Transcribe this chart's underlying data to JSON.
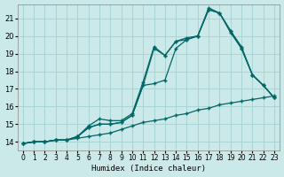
{
  "xlabel": "Humidex (Indice chaleur)",
  "bg_color": "#cce9e9",
  "grid_color": "#aad4d4",
  "line_color": "#006666",
  "xlim": [
    -0.5,
    23.5
  ],
  "ylim": [
    13.5,
    21.8
  ],
  "yticks": [
    14,
    15,
    16,
    17,
    18,
    19,
    20,
    21
  ],
  "xticks": [
    0,
    1,
    2,
    3,
    4,
    5,
    6,
    7,
    8,
    9,
    10,
    11,
    12,
    13,
    14,
    15,
    16,
    17,
    18,
    19,
    20,
    21,
    22,
    23
  ],
  "line1_x": [
    0,
    1,
    2,
    3,
    4,
    5,
    6,
    7,
    8,
    9,
    10,
    11,
    12,
    13,
    14,
    15,
    16,
    17,
    18,
    19,
    20,
    21,
    22,
    23
  ],
  "line1_y": [
    13.9,
    14.0,
    14.0,
    14.1,
    14.1,
    14.2,
    14.3,
    14.4,
    14.5,
    14.7,
    14.9,
    15.1,
    15.2,
    15.3,
    15.5,
    15.6,
    15.8,
    15.9,
    16.1,
    16.2,
    16.3,
    16.4,
    16.5,
    16.6
  ],
  "line2_x": [
    0,
    1,
    2,
    3,
    4,
    5,
    6,
    7,
    8,
    9,
    10,
    11,
    12,
    13,
    14,
    15,
    16,
    17,
    18,
    19,
    20,
    21,
    22,
    23
  ],
  "line2_y": [
    13.9,
    14.0,
    14.0,
    14.1,
    14.1,
    14.3,
    14.8,
    15.0,
    15.0,
    15.1,
    15.5,
    17.2,
    17.3,
    17.5,
    19.3,
    19.8,
    20.0,
    21.5,
    21.3,
    20.3,
    19.3,
    17.8,
    17.2,
    16.5
  ],
  "line3_x": [
    0,
    1,
    2,
    3,
    4,
    5,
    6,
    7,
    8,
    9,
    10,
    11,
    12,
    13,
    14,
    15,
    16,
    17,
    18,
    19,
    20,
    21,
    22,
    23
  ],
  "line3_y": [
    13.9,
    14.0,
    14.0,
    14.1,
    14.1,
    14.3,
    14.8,
    15.0,
    15.0,
    15.1,
    15.5,
    17.2,
    19.3,
    18.9,
    19.7,
    19.8,
    20.0,
    21.5,
    21.3,
    20.2,
    19.3,
    17.8,
    17.2,
    16.5
  ],
  "line4_x": [
    0,
    1,
    2,
    3,
    4,
    5,
    6,
    7,
    8,
    9,
    10,
    11,
    12,
    13,
    14,
    15,
    16,
    17,
    18,
    19,
    20,
    21,
    22,
    23
  ],
  "line4_y": [
    13.9,
    14.0,
    14.0,
    14.1,
    14.1,
    14.3,
    14.9,
    15.3,
    15.2,
    15.2,
    15.6,
    17.4,
    19.4,
    18.9,
    19.7,
    19.9,
    20.0,
    21.6,
    21.3,
    20.3,
    19.4,
    17.8,
    17.2,
    16.5
  ]
}
